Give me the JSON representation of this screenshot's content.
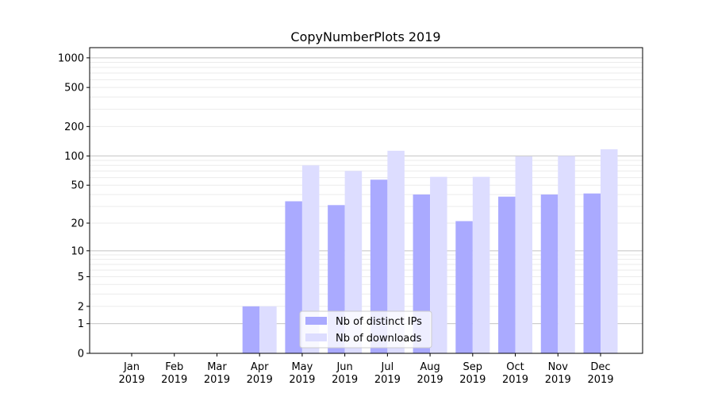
{
  "chart_data": {
    "type": "bar",
    "title": "CopyNumberPlots 2019",
    "xlabel": "",
    "ylabel": "",
    "yscale": "log(1+y)",
    "ylim": [
      0,
      1270
    ],
    "yticks": [
      0,
      1,
      2,
      5,
      10,
      20,
      50,
      100,
      200,
      500,
      1000
    ],
    "grid": true,
    "legend_placement": "bottom-center",
    "categories": [
      [
        "Jan",
        "2019"
      ],
      [
        "Feb",
        "2019"
      ],
      [
        "Mar",
        "2019"
      ],
      [
        "Apr",
        "2019"
      ],
      [
        "May",
        "2019"
      ],
      [
        "Jun",
        "2019"
      ],
      [
        "Jul",
        "2019"
      ],
      [
        "Aug",
        "2019"
      ],
      [
        "Sep",
        "2019"
      ],
      [
        "Oct",
        "2019"
      ],
      [
        "Nov",
        "2019"
      ],
      [
        "Dec",
        "2019"
      ]
    ],
    "series": [
      {
        "name": "Nb of distinct IPs",
        "color": "#aaaaff",
        "values": [
          0,
          0,
          0,
          2,
          34,
          31,
          57,
          40,
          21,
          38,
          40,
          41
        ]
      },
      {
        "name": "Nb of downloads",
        "color": "#ddddff",
        "values": [
          0,
          0,
          0,
          2,
          80,
          70,
          113,
          61,
          61,
          99,
          100,
          117
        ]
      }
    ]
  }
}
